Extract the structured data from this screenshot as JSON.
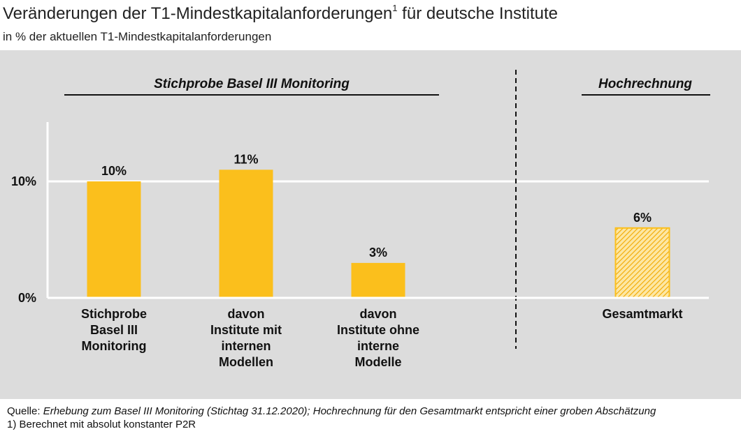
{
  "header": {
    "title": "Veränderungen der T1-Mindestkapitalanforderungen",
    "title_sup": "1",
    "title_suffix": " für deutsche Institute",
    "subtitle": "in % der aktuellen T1-Mindestkapitalanforderungen"
  },
  "chart_data": {
    "type": "bar",
    "groups": [
      {
        "title": "Stichprobe Basel III Monitoring"
      },
      {
        "title": "Hochrechnung"
      }
    ],
    "categories": [
      "Stichprobe Basel III Monitoring",
      "davon Institute mit internen Modellen",
      "davon Institute ohne interne Modelle",
      "Gesamtmarkt"
    ],
    "category_lines": [
      [
        "Stichprobe",
        "Basel III",
        "Monitoring"
      ],
      [
        "davon",
        "Institute mit",
        "internen",
        "Modellen"
      ],
      [
        "davon",
        "Institute ohne",
        "interne",
        "Modelle"
      ],
      [
        "Gesamtmarkt"
      ]
    ],
    "values": [
      10,
      11,
      3,
      6
    ],
    "value_labels": [
      "10%",
      "11%",
      "3%",
      "6%"
    ],
    "bar_group": [
      0,
      0,
      0,
      1
    ],
    "bar_style": [
      "solid",
      "solid",
      "solid",
      "hatched"
    ],
    "yticks": [
      0,
      10
    ],
    "ytick_labels": [
      "0%",
      "10%"
    ],
    "ylim": [
      0,
      15
    ],
    "grid": "horizontal at 10%",
    "colors": {
      "bar": "#fbbf1c",
      "hatch": "#f2a900",
      "panel": "#dcdcdc",
      "gridline": "#ffffff"
    }
  },
  "footer": {
    "source_label": "Quelle: ",
    "source_text": "Erhebung zum Basel III Monitoring (Stichtag 31.12.2020); Hochrechnung für den Gesamtmarkt entspricht einer groben Abschätzung",
    "footnote": "1) Berechnet mit absolut konstanter P2R"
  }
}
